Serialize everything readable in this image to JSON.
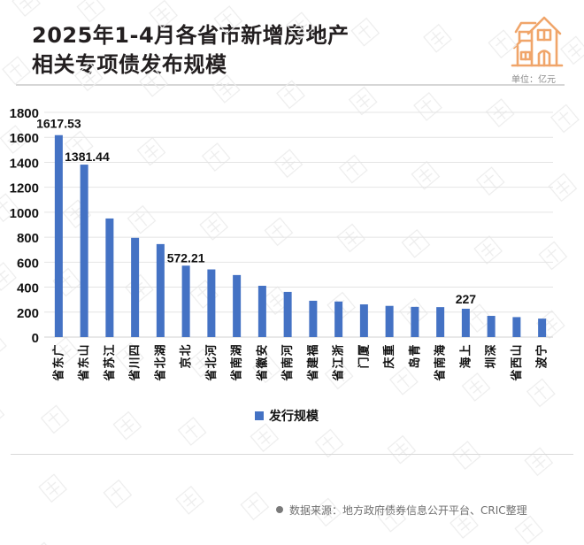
{
  "header": {
    "title_line1": "2025年1-4月各省市新增房地产",
    "title_line2": "相关专项债发布规模",
    "unit": "单位：亿元",
    "logo_icon": "house-icon",
    "accent_color": "#f0a56a"
  },
  "legend": {
    "label": "发行规模",
    "color": "#4472c4"
  },
  "footer": {
    "bullet_icon": "dot-icon",
    "source": "数据来源：地方政府债券信息公开平台、CRIC整理"
  },
  "chart_data": {
    "type": "bar",
    "title": "2025年1-4月各省市新增房地产相关专项债发布规模",
    "xlabel": "",
    "ylabel": "",
    "unit": "亿元",
    "ylim": [
      0,
      1800
    ],
    "yticks": [
      0,
      200,
      400,
      600,
      800,
      1000,
      1200,
      1400,
      1600,
      1800
    ],
    "grid": true,
    "legend_position": "bottom",
    "bar_color": "#4472c4",
    "categories": [
      "广东省",
      "山东省",
      "江苏省",
      "四川省",
      "湖北省",
      "北京",
      "河北省",
      "湖南省",
      "安徽省",
      "河南省",
      "福建省",
      "浙江省",
      "厦门",
      "重庆",
      "青岛",
      "海南省",
      "上海",
      "深圳",
      "山西省",
      "宁波"
    ],
    "series": [
      {
        "name": "发行规模",
        "values": [
          1617.53,
          1381.44,
          950,
          795,
          745,
          572.21,
          542,
          497,
          411,
          362,
          291,
          285,
          262,
          250,
          242,
          240,
          227,
          170,
          160,
          148
        ]
      }
    ],
    "data_labels": [
      {
        "category": "广东省",
        "text": "1617.53"
      },
      {
        "category": "山东省",
        "text": "1381.44"
      },
      {
        "category": "北京",
        "text": "572.21"
      },
      {
        "category": "上海",
        "text": "227"
      }
    ]
  }
}
